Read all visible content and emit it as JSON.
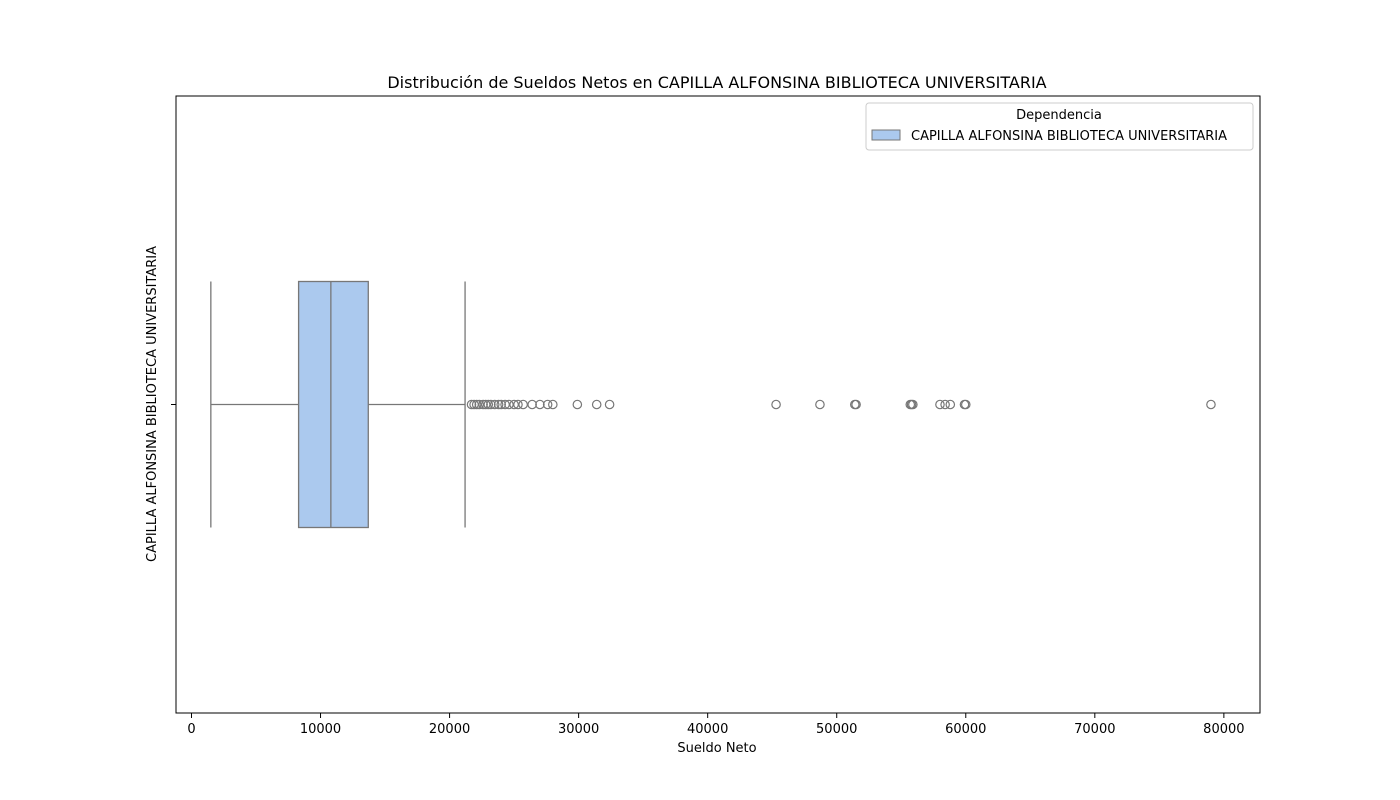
{
  "chart_data": {
    "type": "boxplot",
    "orientation": "horizontal",
    "title": "Distribución de Sueldos Netos en CAPILLA ALFONSINA BIBLIOTECA UNIVERSITARIA",
    "xlabel": "Sueldo Neto",
    "ylabel": "CAPILLA ALFONSINA BIBLIOTECA UNIVERSITARIA",
    "xlim": [
      -1200,
      82800
    ],
    "xticks": [
      0,
      10000,
      20000,
      30000,
      40000,
      50000,
      60000,
      70000,
      80000
    ],
    "xtick_labels": [
      "0",
      "10000",
      "20000",
      "30000",
      "40000",
      "50000",
      "60000",
      "70000",
      "80000"
    ],
    "legend": {
      "title": "Dependencia",
      "placement": "top-right",
      "entries": [
        "CAPILLA ALFONSINA BIBLIOTECA UNIVERSITARIA"
      ]
    },
    "series": [
      {
        "name": "CAPILLA ALFONSINA BIBLIOTECA UNIVERSITARIA",
        "color": "#abc9ee",
        "edge_color": "#777777",
        "whisker_low": 1500,
        "q1": 8300,
        "median": 10800,
        "q3": 13700,
        "whisker_high": 21200,
        "outliers": [
          21700,
          21900,
          22100,
          22300,
          22600,
          22800,
          23000,
          23200,
          23500,
          23800,
          24000,
          24300,
          24600,
          25000,
          25300,
          25700,
          26400,
          27000,
          27600,
          28000,
          29900,
          31400,
          32400,
          45300,
          48700,
          51400,
          51500,
          55700,
          55800,
          55900,
          58000,
          58400,
          58800,
          59900,
          60000,
          79000
        ]
      }
    ]
  }
}
